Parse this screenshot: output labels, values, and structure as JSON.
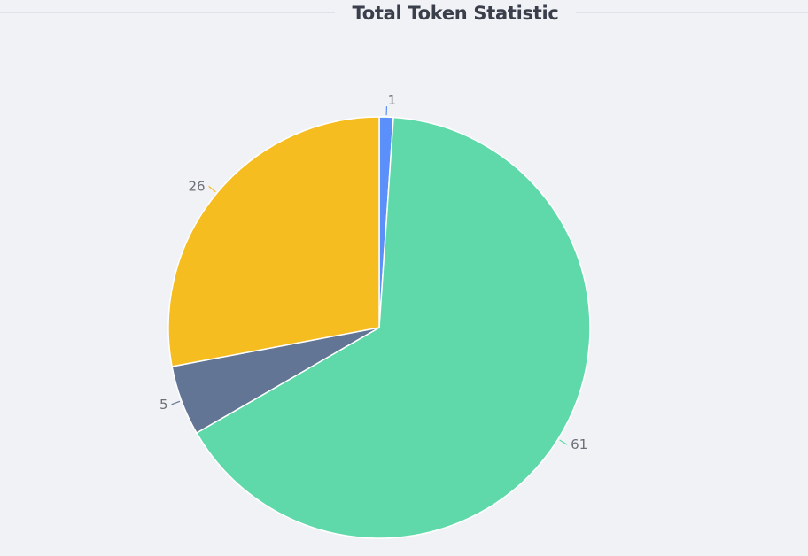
{
  "chart_data": {
    "type": "pie",
    "title": "Total Token Statistic",
    "slices": [
      {
        "value": 1,
        "label": "1",
        "color": "#5b8ff9"
      },
      {
        "value": 61,
        "label": "61",
        "color": "#5fd9a9"
      },
      {
        "value": 5,
        "label": "5",
        "color": "#637595"
      },
      {
        "value": 26,
        "label": "26",
        "color": "#f6bd21"
      }
    ],
    "legend": "none",
    "grid": false
  }
}
